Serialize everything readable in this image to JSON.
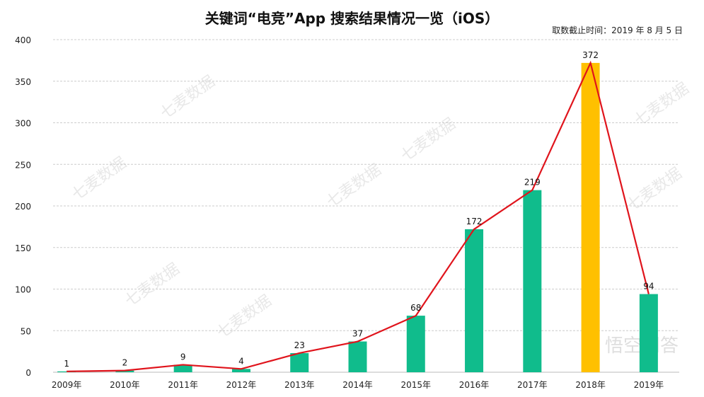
{
  "chart_data": {
    "type": "bar",
    "title": "关键词“电竞”App 搜索结果情况一览（iOS）",
    "subtitle": "取数截止时间：2019 年 8 月 5 日",
    "categories": [
      "2009年",
      "2010年",
      "2011年",
      "2012年",
      "2013年",
      "2014年",
      "2015年",
      "2016年",
      "2017年",
      "2018年",
      "2019年"
    ],
    "values": [
      1,
      2,
      9,
      4,
      23,
      37,
      68,
      172,
      219,
      372,
      94
    ],
    "highlight_index": 9,
    "overlay_line": true,
    "yticks": [
      0,
      50,
      100,
      150,
      200,
      250,
      300,
      350,
      400
    ],
    "ylim": [
      0,
      400
    ],
    "xlabel": "",
    "ylabel": "",
    "grid": true
  },
  "colors": {
    "bar": "#10BC8C",
    "highlight": "#FFC000",
    "line": "#E0141C",
    "grid": "#cccccc"
  },
  "watermarks": {
    "brand": "七麦数据",
    "site": "悟空问答"
  }
}
